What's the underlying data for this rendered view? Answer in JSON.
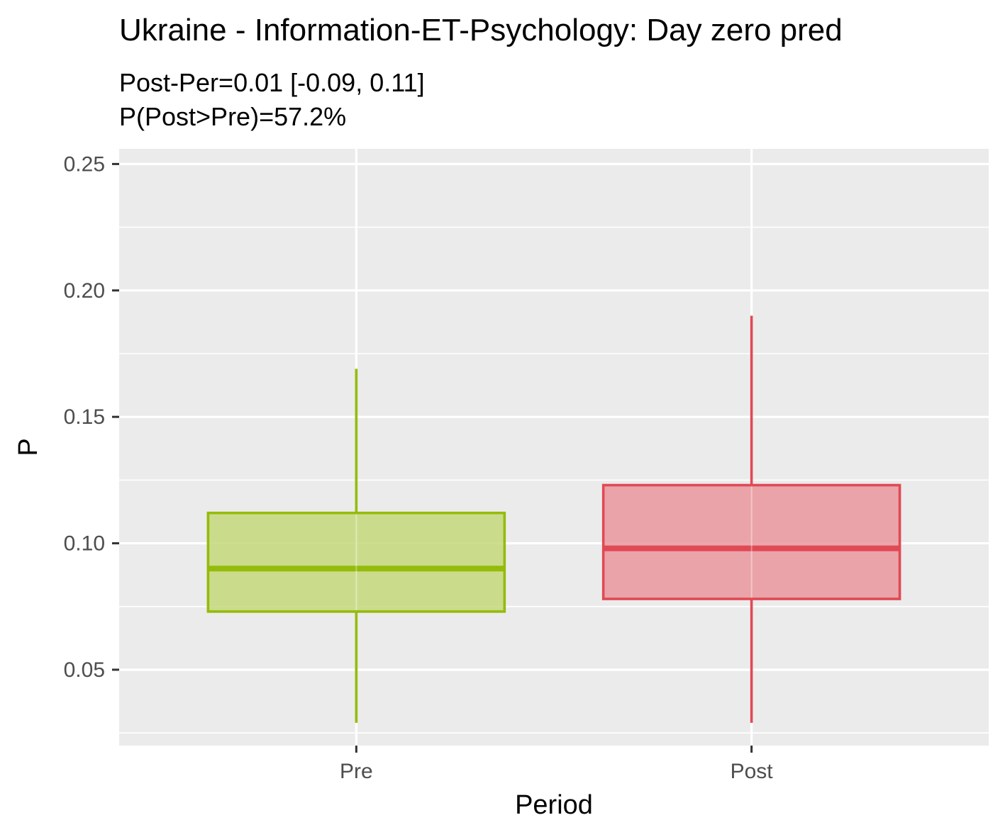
{
  "chart_data": {
    "type": "box",
    "title": "Ukraine - Information-ET-Psychology: Day zero pred",
    "subtitle_lines": [
      "Post-Per=0.01 [-0.09, 0.11]",
      "P(Post>Pre)=57.2%"
    ],
    "xlabel": "Period",
    "ylabel": "P",
    "categories": [
      "Pre",
      "Post"
    ],
    "ylim": [
      0.02,
      0.256
    ],
    "y_ticks": [
      0.05,
      0.1,
      0.15,
      0.2,
      0.25
    ],
    "y_tick_labels": [
      "0.05",
      "0.10",
      "0.15",
      "0.20",
      "0.25"
    ],
    "grid": true,
    "series": [
      {
        "category": "Pre",
        "min": 0.029,
        "q1": 0.073,
        "median": 0.09,
        "q3": 0.112,
        "max": 0.169,
        "color": "#95BB0B",
        "fill": "#C4D87B"
      },
      {
        "category": "Post",
        "min": 0.029,
        "q1": 0.078,
        "median": 0.098,
        "q3": 0.123,
        "max": 0.19,
        "color": "#E04A55",
        "fill": "#EA979C"
      }
    ]
  }
}
